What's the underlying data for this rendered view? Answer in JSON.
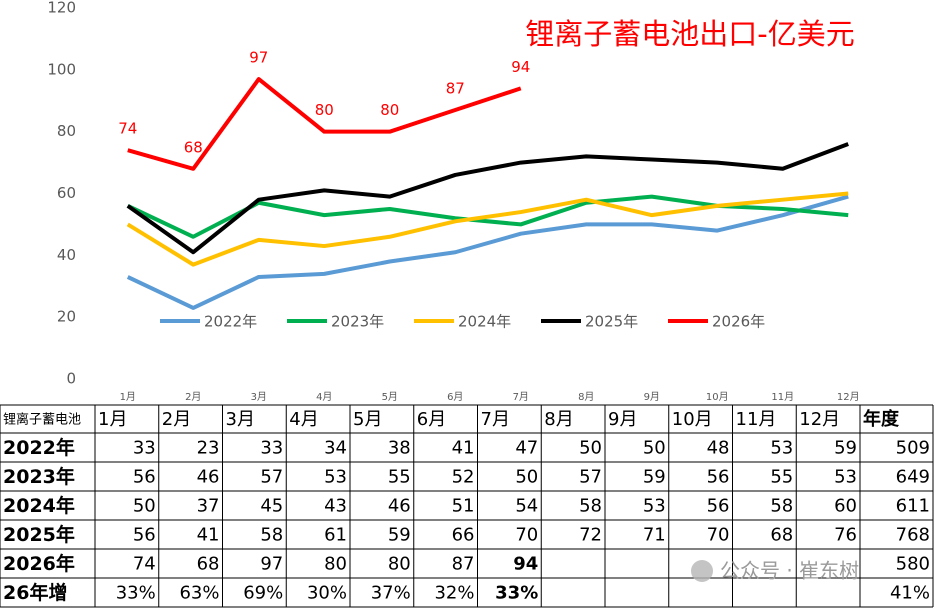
{
  "chart_data": {
    "type": "line",
    "title": "锂离子蓄电池出口-亿美元",
    "categories": [
      "1月",
      "2月",
      "3月",
      "4月",
      "5月",
      "6月",
      "7月",
      "8月",
      "9月",
      "10月",
      "11月",
      "12月"
    ],
    "series": [
      {
        "name": "2022年",
        "color": "#5b9bd5",
        "values": [
          33,
          23,
          33,
          34,
          38,
          41,
          47,
          50,
          50,
          48,
          53,
          59
        ]
      },
      {
        "name": "2023年",
        "color": "#00b050",
        "values": [
          56,
          46,
          57,
          53,
          55,
          52,
          50,
          57,
          59,
          56,
          55,
          53
        ]
      },
      {
        "name": "2024年",
        "color": "#ffc000",
        "values": [
          50,
          37,
          45,
          43,
          46,
          51,
          54,
          58,
          53,
          56,
          58,
          60
        ]
      },
      {
        "name": "2025年",
        "color": "#000000",
        "values": [
          56,
          41,
          58,
          61,
          59,
          66,
          70,
          72,
          71,
          70,
          68,
          76
        ]
      },
      {
        "name": "2026年",
        "color": "#ff0000",
        "values": [
          74,
          68,
          97,
          80,
          80,
          87,
          94,
          null,
          null,
          null,
          null,
          null
        ],
        "data_labels": true
      }
    ],
    "ylim": [
      0,
      120
    ],
    "yticks": [
      0,
      20,
      40,
      60,
      80,
      100,
      120
    ],
    "grid": false,
    "legend": "bottom"
  },
  "table": {
    "header": [
      "锂离子蓄电池",
      "1月",
      "2月",
      "3月",
      "4月",
      "5月",
      "6月",
      "7月",
      "8月",
      "9月",
      "10月",
      "11月",
      "12月",
      "年度"
    ],
    "highlight_color": "#ff0000",
    "rows": [
      {
        "label": "2022年",
        "cells": [
          33,
          23,
          33,
          34,
          38,
          41,
          47,
          50,
          50,
          48,
          53,
          59
        ],
        "total": 509
      },
      {
        "label": "2023年",
        "cells": [
          56,
          46,
          57,
          53,
          55,
          52,
          50,
          57,
          59,
          56,
          55,
          53
        ],
        "total": 649
      },
      {
        "label": "2024年",
        "cells": [
          50,
          37,
          45,
          43,
          46,
          51,
          54,
          58,
          53,
          56,
          58,
          60
        ],
        "total": 611
      },
      {
        "label": "2025年",
        "cells": [
          56,
          41,
          58,
          61,
          59,
          66,
          70,
          72,
          71,
          70,
          68,
          76
        ],
        "total": 768
      },
      {
        "label": "2026年",
        "cells": [
          74,
          68,
          97,
          80,
          80,
          87,
          94,
          null,
          null,
          null,
          null,
          null
        ],
        "total": 580,
        "highlight": 6
      },
      {
        "label": "26年增",
        "cells": [
          "33%",
          "63%",
          "69%",
          "30%",
          "37%",
          "32%",
          "33%",
          null,
          null,
          null,
          null,
          null
        ],
        "total": "41%",
        "highlight": 6
      }
    ]
  },
  "watermark": "公众号 · 崔东树"
}
